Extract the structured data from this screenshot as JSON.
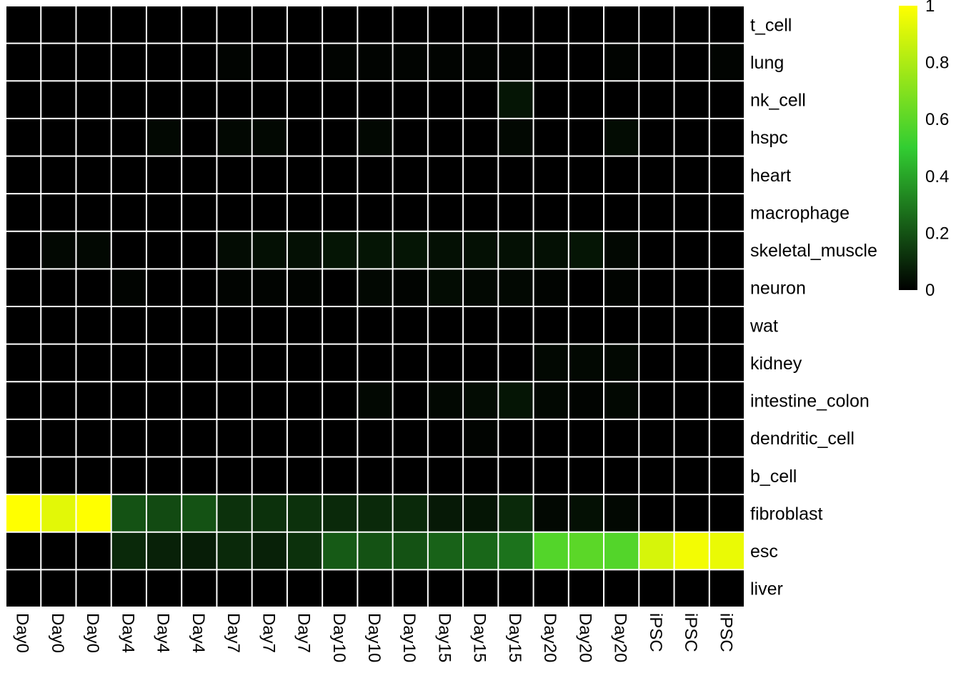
{
  "chart_data": {
    "type": "heatmap",
    "title": "",
    "xlabel": "",
    "ylabel": "",
    "columns": [
      "Day0",
      "Day0",
      "Day0",
      "Day4",
      "Day4",
      "Day4",
      "Day7",
      "Day7",
      "Day7",
      "Day10",
      "Day10",
      "Day10",
      "Day15",
      "Day15",
      "Day15",
      "Day20",
      "Day20",
      "Day20",
      "iPSC",
      "iPSC",
      "iPSC"
    ],
    "rows": [
      "t_cell",
      "lung",
      "nk_cell",
      "hspc",
      "heart",
      "macrophage",
      "skeletal_muscle",
      "neuron",
      "wat",
      "kidney",
      "intestine_colon",
      "dendritic_cell",
      "b_cell",
      "fibroblast",
      "esc",
      "liver"
    ],
    "values": [
      [
        0,
        0,
        0,
        0,
        0,
        0,
        0,
        0,
        0,
        0,
        0,
        0,
        0,
        0,
        0,
        0,
        0,
        0,
        0,
        0,
        0
      ],
      [
        0,
        0,
        0,
        0,
        0,
        0,
        0.01,
        0,
        0,
        0.01,
        0.01,
        0.01,
        0.01,
        0.01,
        0.01,
        0,
        0,
        0.01,
        0,
        0,
        0.01
      ],
      [
        0,
        0,
        0,
        0,
        0,
        0,
        0,
        0,
        0,
        0,
        0,
        0,
        0,
        0,
        0.05,
        0,
        0,
        0,
        0,
        0,
        0
      ],
      [
        0,
        0,
        0,
        0,
        0.02,
        0,
        0.02,
        0.02,
        0,
        0,
        0.02,
        0,
        0,
        0,
        0.02,
        0,
        0,
        0.03,
        0,
        0,
        0
      ],
      [
        0,
        0,
        0,
        0,
        0,
        0,
        0,
        0,
        0,
        0,
        0,
        0,
        0,
        0,
        0,
        0,
        0,
        0,
        0,
        0,
        0
      ],
      [
        0,
        0,
        0,
        0,
        0,
        0,
        0,
        0,
        0,
        0,
        0,
        0,
        0,
        0,
        0,
        0,
        0,
        0,
        0,
        0,
        0
      ],
      [
        0,
        0.02,
        0.02,
        0,
        0,
        0,
        0.03,
        0.04,
        0.04,
        0.05,
        0.05,
        0.05,
        0.04,
        0.04,
        0.04,
        0.04,
        0.05,
        0.02,
        0,
        0,
        0
      ],
      [
        0,
        0,
        0,
        0.01,
        0,
        0,
        0.01,
        0.01,
        0.01,
        0,
        0.02,
        0.01,
        0.03,
        0.02,
        0.02,
        0.01,
        0,
        0.01,
        0,
        0,
        0
      ],
      [
        0,
        0,
        0,
        0,
        0,
        0,
        0,
        0,
        0,
        0,
        0,
        0,
        0,
        0,
        0,
        0,
        0,
        0,
        0,
        0,
        0
      ],
      [
        0,
        0,
        0,
        0,
        0,
        0,
        0,
        0,
        0,
        0,
        0,
        0,
        0,
        0,
        0,
        0.02,
        0.02,
        0.02,
        0,
        0,
        0
      ],
      [
        0,
        0,
        0,
        0,
        0,
        0,
        0,
        0,
        0,
        0,
        0.02,
        0,
        0.02,
        0.03,
        0.05,
        0.02,
        0.01,
        0.02,
        0,
        0,
        0
      ],
      [
        0,
        0,
        0,
        0,
        0,
        0,
        0,
        0,
        0,
        0,
        0,
        0,
        0,
        0.01,
        0,
        0,
        0,
        0,
        0,
        0,
        0
      ],
      [
        0,
        0,
        0,
        0,
        0,
        0,
        0,
        0,
        0,
        0,
        0,
        0,
        0,
        0,
        0,
        0,
        0,
        0,
        0,
        0,
        0
      ],
      [
        1.0,
        0.93,
        1.0,
        0.2,
        0.18,
        0.2,
        0.12,
        0.12,
        0.12,
        0.1,
        0.1,
        0.1,
        0.06,
        0.05,
        0.1,
        0.02,
        0.04,
        0.02,
        0,
        0,
        0
      ],
      [
        0,
        0,
        0,
        0.1,
        0.08,
        0.07,
        0.1,
        0.08,
        0.12,
        0.22,
        0.2,
        0.2,
        0.24,
        0.25,
        0.28,
        0.58,
        0.6,
        0.58,
        0.9,
        0.97,
        0.95
      ],
      [
        0,
        0,
        0,
        0,
        0,
        0,
        0,
        0,
        0,
        0,
        0,
        0,
        0,
        0,
        0,
        0,
        0,
        0,
        0,
        0,
        0
      ]
    ],
    "color_scale": {
      "min": 0,
      "max": 1,
      "stops": [
        {
          "value": 0,
          "color": "#000000"
        },
        {
          "value": 0.5,
          "color": "#32cd32"
        },
        {
          "value": 1,
          "color": "#ffff00"
        }
      ],
      "ticks": [
        "0",
        "0.2",
        "0.4",
        "0.6",
        "0.8",
        "1"
      ],
      "tick_values": [
        0,
        0.2,
        0.4,
        0.6,
        0.8,
        1
      ]
    },
    "grid": true,
    "grid_color": "#ffffff",
    "legend_position": "top-right"
  }
}
